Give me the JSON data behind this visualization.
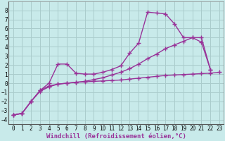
{
  "background_color": "#c8eaea",
  "grid_color": "#aacccc",
  "line_color": "#993399",
  "marker": "+",
  "marker_size": 4,
  "marker_lw": 1.0,
  "line_width": 1.0,
  "xlabel": "Windchill (Refroidissement éolien,°C)",
  "xlabel_fontsize": 6.5,
  "xtick_fontsize": 5.5,
  "ytick_fontsize": 5.5,
  "xlim": [
    -0.5,
    23.5
  ],
  "ylim": [
    -4.5,
    9.0
  ],
  "yticks": [
    -4,
    -3,
    -2,
    -1,
    0,
    1,
    2,
    3,
    4,
    5,
    6,
    7,
    8
  ],
  "xticks": [
    0,
    1,
    2,
    3,
    4,
    5,
    6,
    7,
    8,
    9,
    10,
    11,
    12,
    13,
    14,
    15,
    16,
    17,
    18,
    19,
    20,
    21,
    22,
    23
  ],
  "series": [
    {
      "x": [
        0,
        1,
        2,
        3,
        4,
        5,
        6,
        7,
        8,
        9,
        10,
        11,
        12,
        13,
        14,
        15,
        16,
        17,
        18,
        19,
        20,
        21,
        22
      ],
      "y": [
        -3.5,
        -3.3,
        -2.0,
        -0.8,
        0.0,
        2.1,
        2.1,
        1.1,
        1.0,
        1.0,
        1.2,
        1.5,
        1.9,
        3.3,
        4.4,
        7.8,
        7.7,
        7.6,
        6.5,
        5.0,
        5.0,
        4.5,
        1.5
      ]
    },
    {
      "x": [
        0,
        1,
        2,
        3,
        4,
        5,
        6,
        7,
        8,
        9,
        10,
        11,
        12,
        13,
        14,
        15,
        16,
        17,
        18,
        19,
        20,
        21,
        22,
        23
      ],
      "y": [
        -3.5,
        -3.3,
        -2.0,
        -0.9,
        -0.4,
        -0.1,
        0.0,
        0.1,
        0.15,
        0.2,
        0.25,
        0.3,
        0.35,
        0.45,
        0.55,
        0.65,
        0.75,
        0.85,
        0.9,
        0.95,
        1.0,
        1.05,
        1.1,
        1.2
      ]
    },
    {
      "x": [
        0,
        1,
        2,
        3,
        4,
        5,
        6,
        7,
        8,
        9,
        10,
        11,
        12,
        13,
        14,
        15,
        16,
        17,
        18,
        19,
        20,
        21,
        22
      ],
      "y": [
        -3.5,
        -3.3,
        -2.0,
        -0.8,
        -0.3,
        -0.1,
        -0.0,
        0.1,
        0.2,
        0.4,
        0.6,
        0.9,
        1.2,
        1.6,
        2.1,
        2.7,
        3.2,
        3.8,
        4.2,
        4.6,
        5.0,
        5.0,
        1.5
      ]
    }
  ]
}
